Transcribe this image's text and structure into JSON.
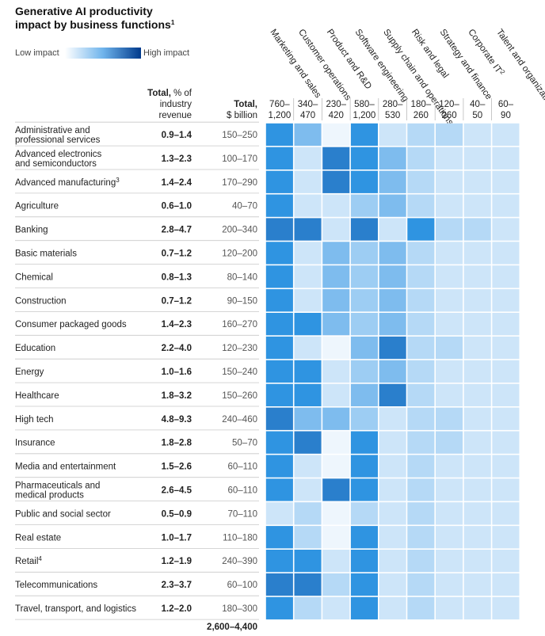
{
  "chart_data": {
    "type": "heatmap",
    "title_line1": "Generative AI productivity",
    "title_line2": "impact by business functions",
    "title_sup": "1",
    "legend": {
      "low": "Low impact",
      "high": "High impact",
      "low_color": "#ffffff",
      "high_color": "#003a8c"
    },
    "col_headers": {
      "total_pct_bold": "Total,",
      "total_pct_rest": "% of",
      "total_pct_line2": "industry",
      "total_pct_line3": "revenue",
      "total_usd_bold": "Total,",
      "total_usd_line2": "$ billion"
    },
    "functions": [
      {
        "name": "Marketing and sales",
        "sup": "",
        "range_top": "760–",
        "range_bottom": "1,200"
      },
      {
        "name": "Customer operations",
        "sup": "",
        "range_top": "340–",
        "range_bottom": "470"
      },
      {
        "name": "Product and R&D",
        "sup": "",
        "range_top": "230–",
        "range_bottom": "420"
      },
      {
        "name": "Software engineering",
        "sup": "",
        "range_top": "580–",
        "range_bottom": "1,200"
      },
      {
        "name": "Supply chain and operations",
        "sup": "",
        "range_top": "280–",
        "range_bottom": "530"
      },
      {
        "name": "Risk and legal",
        "sup": "",
        "range_top": "180–",
        "range_bottom": "260"
      },
      {
        "name": "Strategy and finance",
        "sup": "",
        "range_top": "120–",
        "range_bottom": "260"
      },
      {
        "name": "Corporate IT",
        "sup": "2",
        "range_top": "40–",
        "range_bottom": "50"
      },
      {
        "name": "Talent and organization",
        "sup": "",
        "range_top": "60–",
        "range_bottom": "90"
      }
    ],
    "rows": [
      {
        "industry": [
          "Administrative and",
          "professional services"
        ],
        "sup": "",
        "pct": "0.9–1.4",
        "usd": "150–250",
        "values": [
          3,
          5,
          0,
          3,
          1,
          2,
          2,
          1,
          1
        ]
      },
      {
        "industry": [
          "Advanced electronics",
          "and semiconductors"
        ],
        "sup": "",
        "pct": "1.3–2.3",
        "usd": "100–170",
        "values": [
          3,
          1,
          4,
          3,
          5,
          2,
          1,
          1,
          1
        ]
      },
      {
        "industry": [
          "Advanced manufacturing"
        ],
        "sup": "3",
        "pct": "1.4–2.4",
        "usd": "170–290",
        "values": [
          3,
          1,
          4,
          3,
          5,
          2,
          1,
          1,
          1
        ]
      },
      {
        "industry": [
          "Agriculture"
        ],
        "sup": "",
        "pct": "0.6–1.0",
        "usd": "40–70",
        "values": [
          3,
          1,
          1,
          6,
          5,
          2,
          1,
          1,
          1
        ]
      },
      {
        "industry": [
          "Banking"
        ],
        "sup": "",
        "pct": "2.8–4.7",
        "usd": "200–340",
        "values": [
          4,
          4,
          1,
          4,
          1,
          3,
          2,
          2,
          1
        ]
      },
      {
        "industry": [
          "Basic materials"
        ],
        "sup": "",
        "pct": "0.7–1.2",
        "usd": "120–200",
        "values": [
          3,
          1,
          5,
          6,
          5,
          2,
          1,
          1,
          1
        ]
      },
      {
        "industry": [
          "Chemical"
        ],
        "sup": "",
        "pct": "0.8–1.3",
        "usd": "80–140",
        "values": [
          3,
          1,
          5,
          6,
          5,
          2,
          1,
          1,
          1
        ]
      },
      {
        "industry": [
          "Construction"
        ],
        "sup": "",
        "pct": "0.7–1.2",
        "usd": "90–150",
        "values": [
          3,
          1,
          5,
          6,
          5,
          2,
          1,
          1,
          1
        ]
      },
      {
        "industry": [
          "Consumer packaged goods"
        ],
        "sup": "",
        "pct": "1.4–2.3",
        "usd": "160–270",
        "values": [
          3,
          3,
          5,
          6,
          5,
          2,
          1,
          1,
          1
        ]
      },
      {
        "industry": [
          "Education"
        ],
        "sup": "",
        "pct": "2.2–4.0",
        "usd": "120–230",
        "values": [
          3,
          1,
          0,
          5,
          4,
          2,
          2,
          1,
          1
        ]
      },
      {
        "industry": [
          "Energy"
        ],
        "sup": "",
        "pct": "1.0–1.6",
        "usd": "150–240",
        "values": [
          3,
          3,
          1,
          6,
          5,
          2,
          1,
          1,
          1
        ]
      },
      {
        "industry": [
          "Healthcare"
        ],
        "sup": "",
        "pct": "1.8–3.2",
        "usd": "150–260",
        "values": [
          3,
          3,
          1,
          5,
          4,
          2,
          1,
          1,
          1
        ]
      },
      {
        "industry": [
          "High tech"
        ],
        "sup": "",
        "pct": "4.8–9.3",
        "usd": "240–460",
        "values": [
          4,
          5,
          5,
          6,
          1,
          2,
          2,
          1,
          1
        ]
      },
      {
        "industry": [
          "Insurance"
        ],
        "sup": "",
        "pct": "1.8–2.8",
        "usd": "50–70",
        "values": [
          3,
          4,
          0,
          3,
          1,
          2,
          2,
          1,
          1
        ]
      },
      {
        "industry": [
          "Media and entertainment"
        ],
        "sup": "",
        "pct": "1.5–2.6",
        "usd": "60–110",
        "values": [
          3,
          1,
          0,
          3,
          1,
          2,
          1,
          1,
          1
        ]
      },
      {
        "industry": [
          "Pharmaceuticals and",
          "medical products"
        ],
        "sup": "",
        "pct": "2.6–4.5",
        "usd": "60–110",
        "values": [
          3,
          1,
          4,
          3,
          1,
          2,
          1,
          1,
          1
        ]
      },
      {
        "industry": [
          "Public and social sector"
        ],
        "sup": "",
        "pct": "0.5–0.9",
        "usd": "70–110",
        "values": [
          1,
          2,
          0,
          2,
          1,
          2,
          1,
          1,
          1
        ]
      },
      {
        "industry": [
          "Real estate"
        ],
        "sup": "",
        "pct": "1.0–1.7",
        "usd": "110–180",
        "values": [
          3,
          2,
          0,
          3,
          1,
          2,
          1,
          1,
          1
        ]
      },
      {
        "industry": [
          "Retail"
        ],
        "sup": "4",
        "pct": "1.2–1.9",
        "usd": "240–390",
        "values": [
          3,
          3,
          1,
          3,
          1,
          2,
          1,
          1,
          1
        ]
      },
      {
        "industry": [
          "Telecommunications"
        ],
        "sup": "",
        "pct": "2.3–3.7",
        "usd": "60–100",
        "values": [
          4,
          4,
          2,
          3,
          1,
          2,
          1,
          1,
          1
        ]
      },
      {
        "industry": [
          "Travel, transport, and logistics"
        ],
        "sup": "",
        "pct": "1.2–2.0",
        "usd": "180–300",
        "values": [
          3,
          2,
          1,
          3,
          1,
          2,
          1,
          1,
          1
        ]
      }
    ],
    "grand_total": "2,600–4,400"
  }
}
